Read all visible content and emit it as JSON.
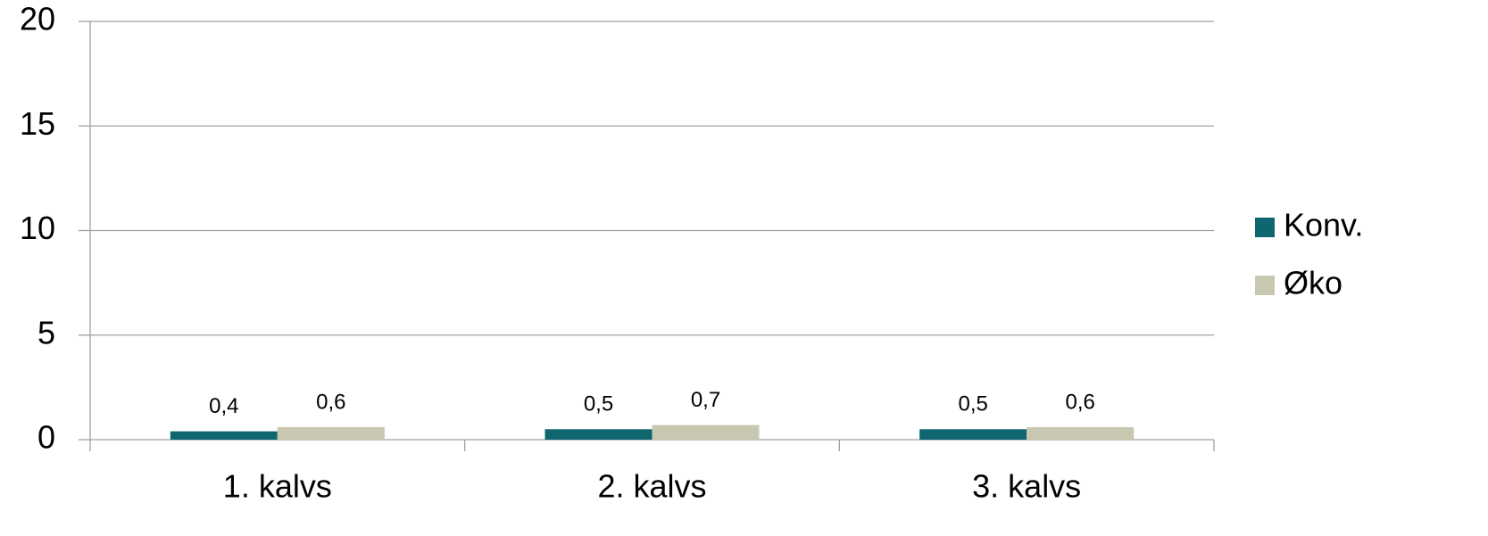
{
  "chart_data": {
    "type": "bar",
    "categories": [
      "1. kalvs",
      "2. kalvs",
      "3. kalvs"
    ],
    "series": [
      {
        "name": "Konv.",
        "color": "#0f6670",
        "values": [
          0.4,
          0.5,
          0.5
        ],
        "value_labels": [
          "0,4",
          "0,5",
          "0,5"
        ]
      },
      {
        "name": "Øko",
        "color": "#c8c8b0",
        "values": [
          0.6,
          0.7,
          0.6
        ],
        "value_labels": [
          "0,6",
          "0,7",
          "0,6"
        ]
      }
    ],
    "ylim": [
      0,
      20
    ],
    "yticks": [
      0,
      5,
      10,
      15,
      20
    ],
    "grid": true,
    "legend": "right"
  }
}
